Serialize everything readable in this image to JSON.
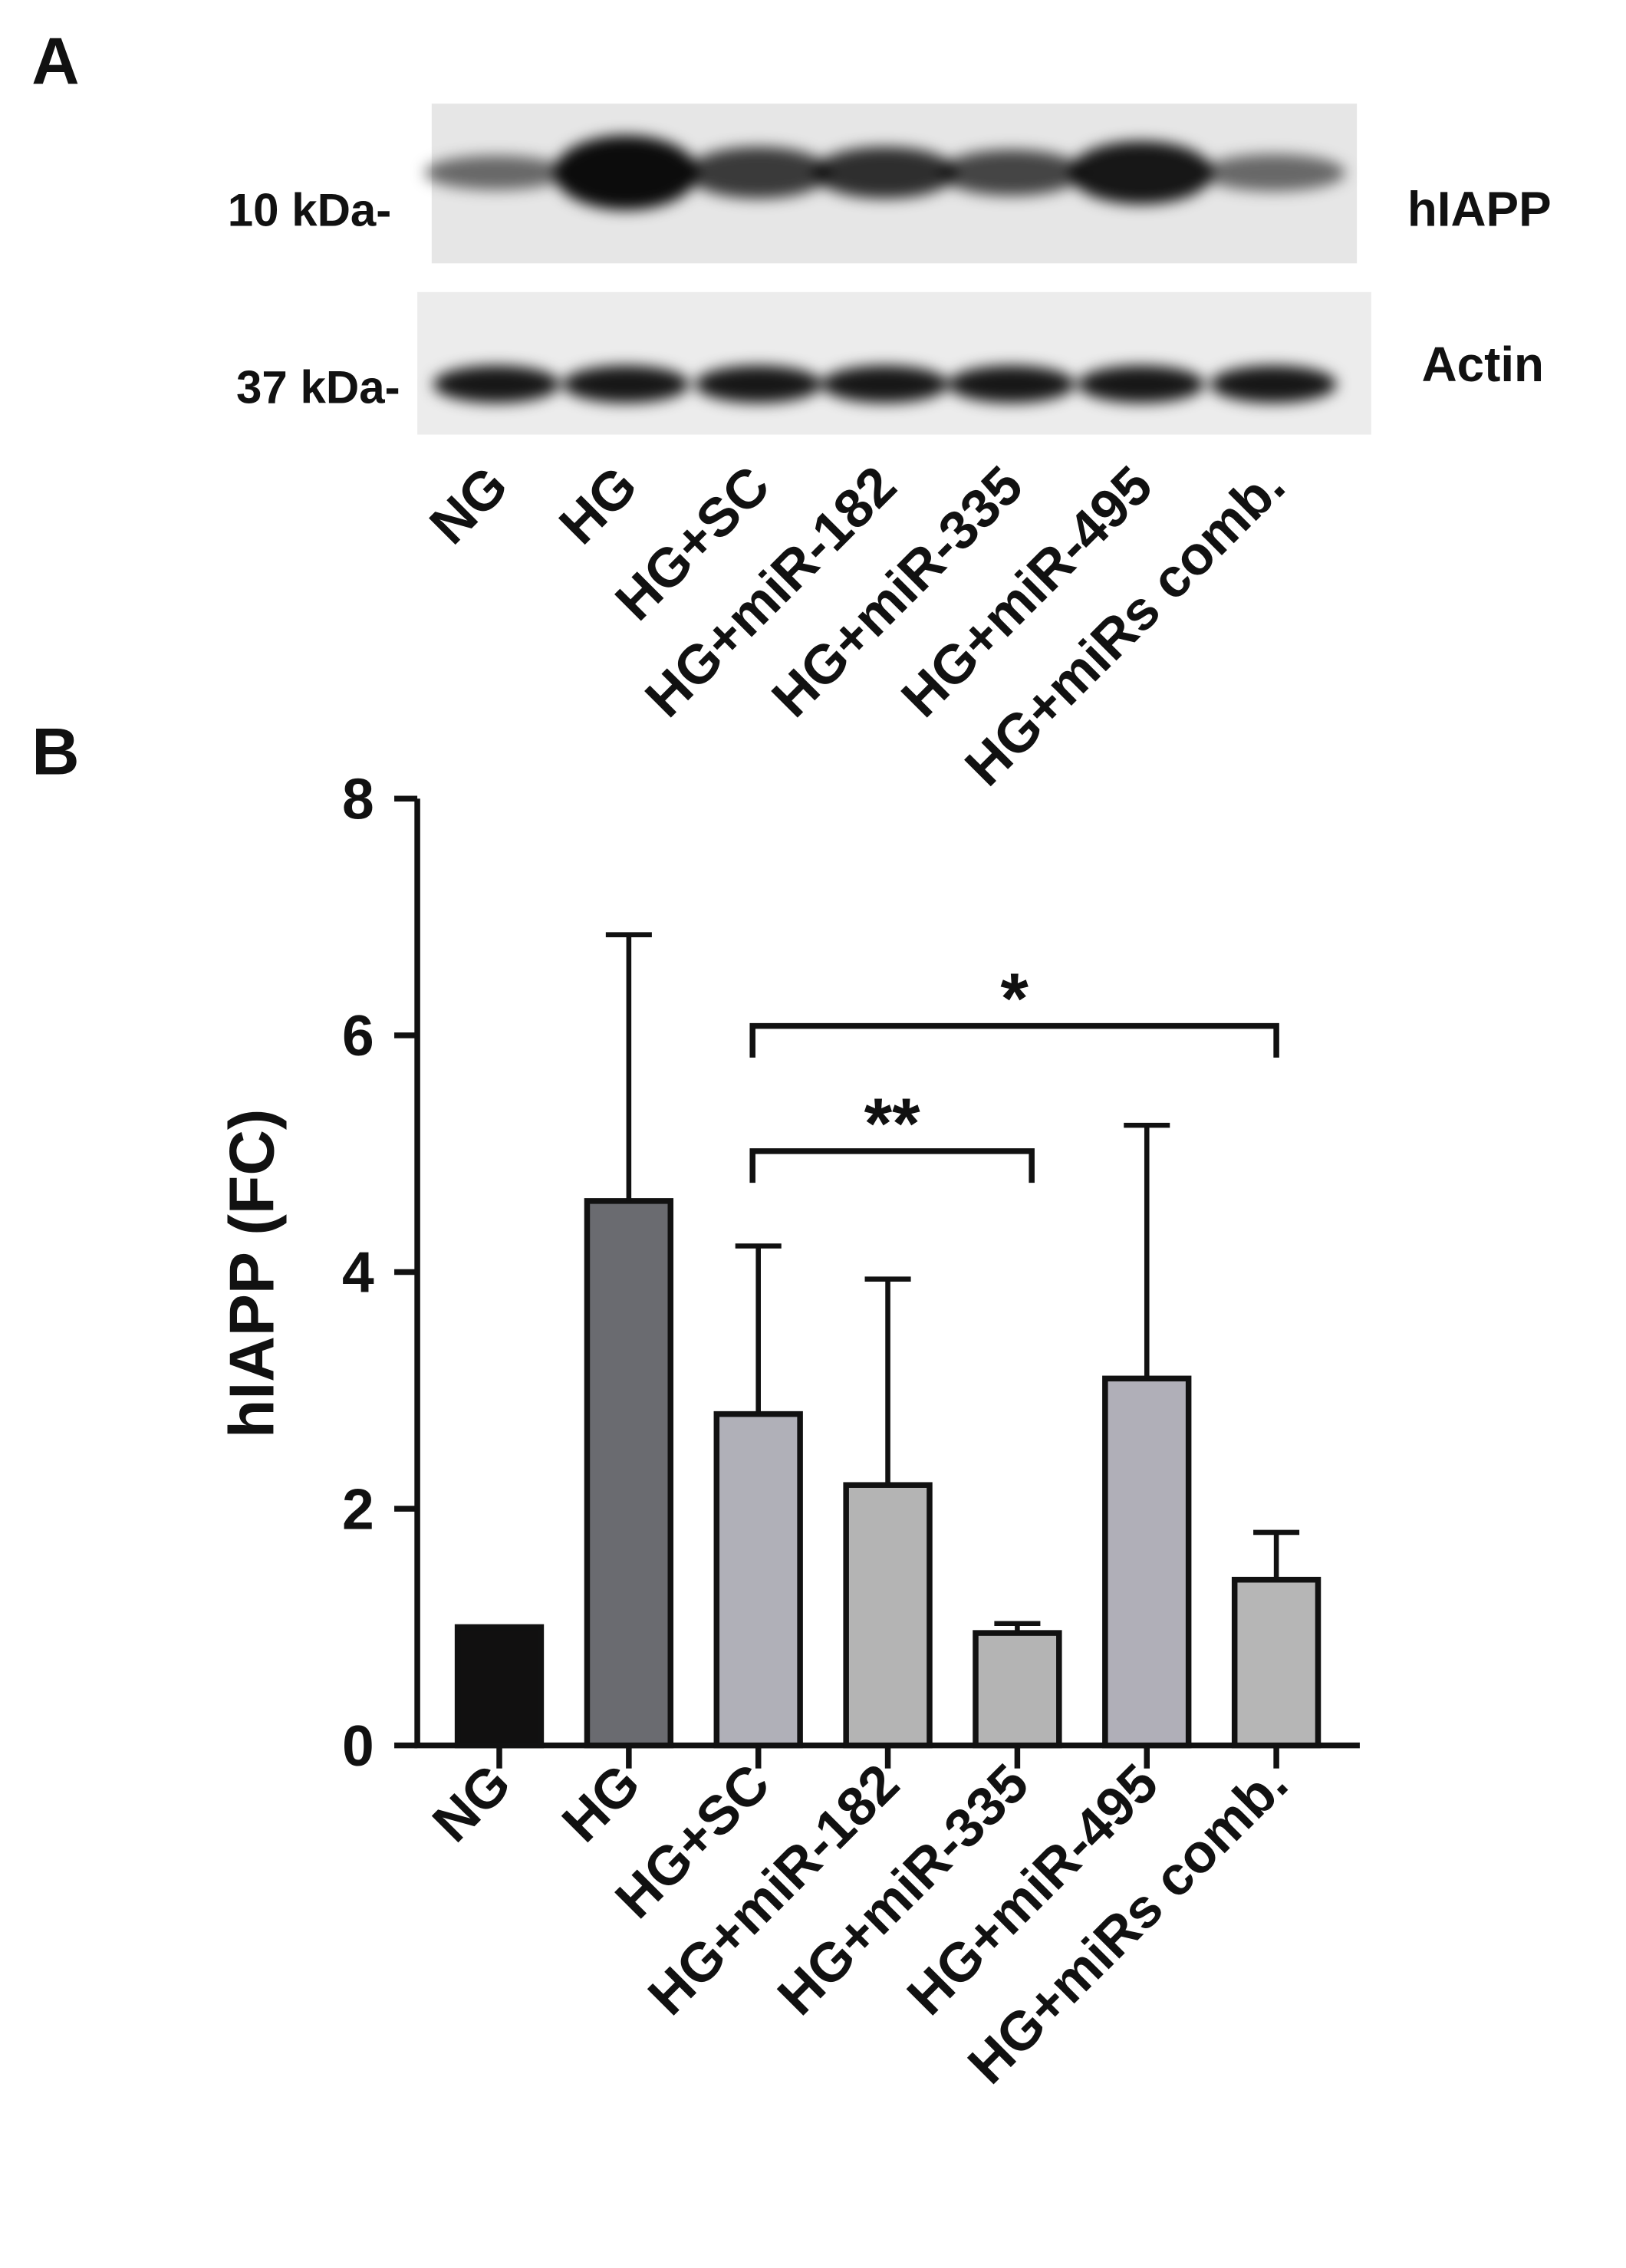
{
  "panel_a": {
    "label": "A",
    "markers": [
      "10 kDa-",
      "37 kDa-"
    ],
    "bands": [
      "hIAPP",
      "Actin"
    ],
    "lanes": [
      "NG",
      "HG",
      "HG+SC",
      "HG+miR-182",
      "HG+miR-335",
      "HG+miR-495",
      "HG+miRs comb."
    ]
  },
  "chart_data": {
    "type": "bar",
    "panel_label": "B",
    "ylabel": "hIAPP (FC)",
    "categories": [
      "NG",
      "HG",
      "HG+SC",
      "HG+miR-182",
      "HG+miR-335",
      "HG+miR-495",
      "HG+miRs comb."
    ],
    "values": [
      1.0,
      4.6,
      2.8,
      2.2,
      0.95,
      3.1,
      1.4
    ],
    "errors": [
      null,
      2.25,
      1.42,
      1.74,
      0.08,
      2.14,
      0.4
    ],
    "colors": [
      "#111010",
      "#6a6b70",
      "#b0b0b8",
      "#b4b4b4",
      "#b4b4b4",
      "#b0afb8",
      "#b6b6b6"
    ],
    "ylim": [
      0,
      8
    ],
    "yticks": [
      0,
      2,
      4,
      6,
      8
    ],
    "significance": [
      {
        "from": "HG+SC",
        "to": "HG+miR-335",
        "label": "**"
      },
      {
        "from": "HG+SC",
        "to": "HG+miRs comb.",
        "label": "*"
      }
    ]
  }
}
